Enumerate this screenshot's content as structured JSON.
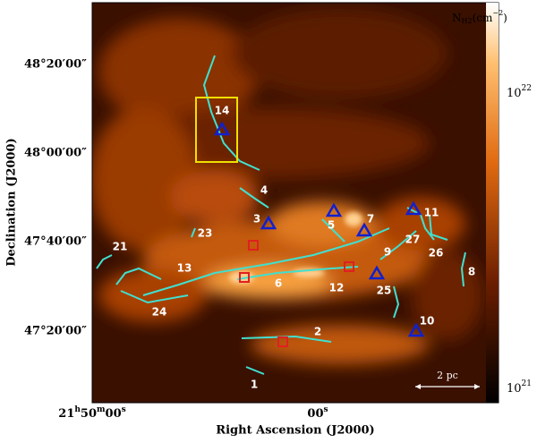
{
  "axes": {
    "x_title": "Right Ascension (J2000)",
    "y_title": "Declination (J2000)",
    "x_ticks": [
      {
        "h": "21",
        "m": "50",
        "s": "00"
      },
      {
        "s": "00"
      }
    ],
    "y_ticks": [
      "48°20′00″",
      "48°00′00″",
      "47°40′00″",
      "47°20′00″"
    ]
  },
  "colorbar": {
    "label": {
      "base": "N",
      "sub": "H2",
      "unit": "(cm",
      "sup": "−2",
      "close": ")"
    },
    "ticks": [
      {
        "base": "10",
        "exp": "22"
      },
      {
        "base": "10",
        "exp": "21"
      }
    ]
  },
  "scale_bar": "2 pc",
  "filaments": [
    "14",
    "4",
    "3",
    "23",
    "5",
    "7",
    "11",
    "27",
    "26",
    "9",
    "21",
    "13",
    "6",
    "12",
    "25",
    "8",
    "24",
    "2",
    "10",
    "1"
  ]
}
